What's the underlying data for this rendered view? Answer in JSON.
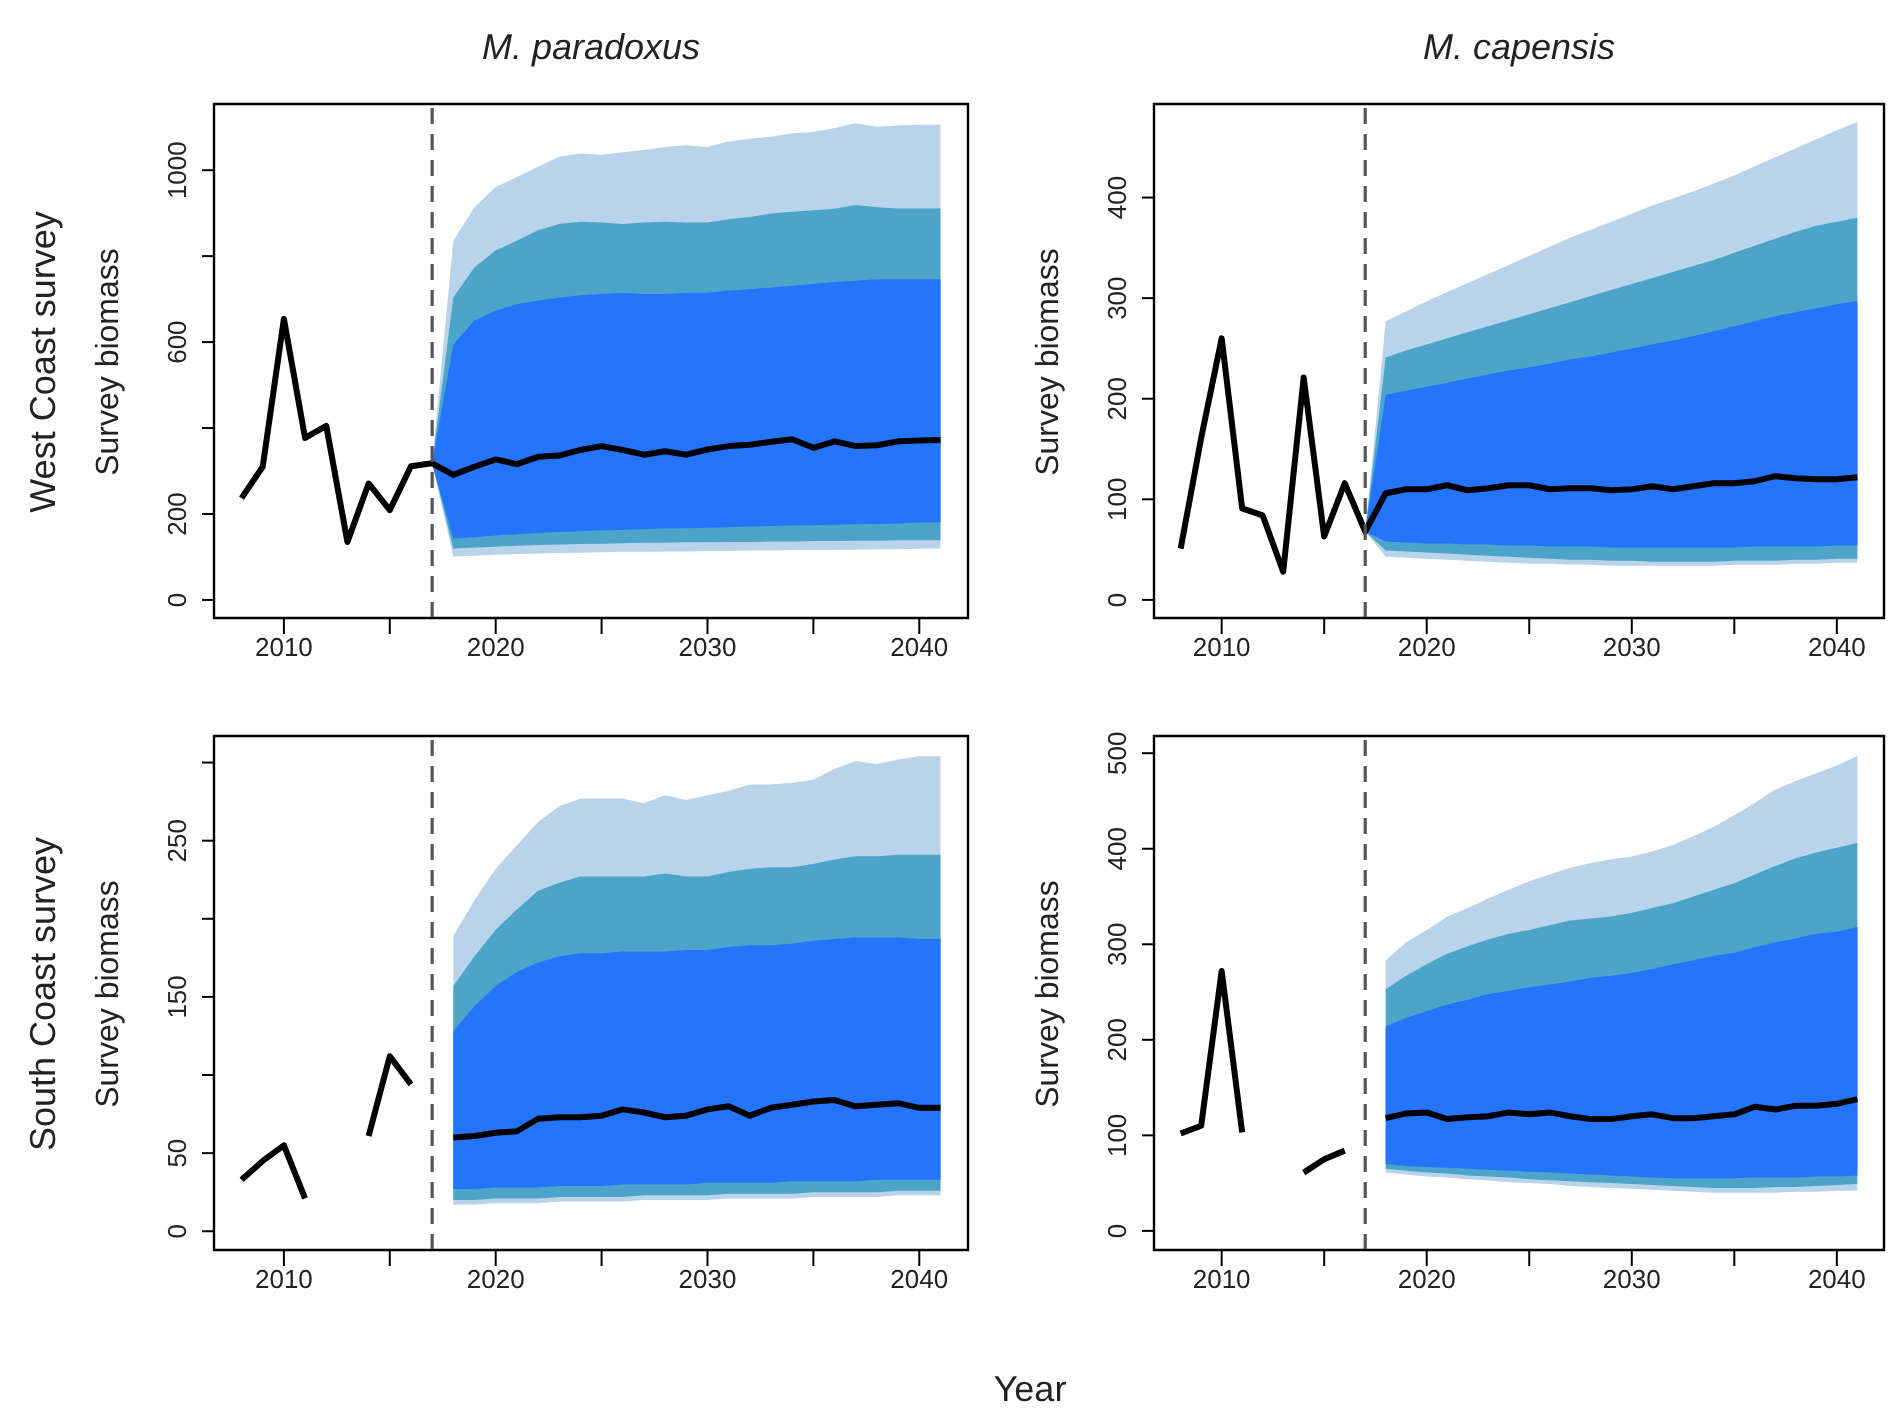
{
  "chart_data": [
    {
      "type": "line",
      "title": "M. paradoxus",
      "ylabel": "Survey biomass",
      "annotations": [
        "West Coast survey"
      ],
      "xlim": [
        2006.7,
        2042.3
      ],
      "xticks": [
        2010,
        {
          "value": 2015,
          "label": null
        },
        2020,
        {
          "value": 2025,
          "label": null
        },
        2030,
        {
          "value": 2035,
          "label": null
        },
        2040
      ],
      "ylim": [
        -42,
        1154
      ],
      "yticks": [
        0,
        200,
        {
          "value": 400,
          "label": null
        },
        600,
        {
          "value": 800,
          "label": null
        },
        1000
      ],
      "ref_lines": [
        {
          "axis": "x",
          "value": 2017,
          "color": "#555555",
          "line_style": "dashed"
        }
      ],
      "series": [
        {
          "type": "area",
          "color": "#b8d3ea",
          "x": [
            2017,
            2018,
            2019,
            2020,
            2021,
            2022,
            2023,
            2024,
            2025,
            2026,
            2027,
            2028,
            2029,
            2030,
            2031,
            2032,
            2033,
            2034,
            2035,
            2036,
            2037,
            2038,
            2039,
            2040,
            2041
          ],
          "values": [
            null,
            null,
            null,
            null,
            null,
            null,
            null,
            null,
            null,
            null,
            null,
            null,
            null,
            null,
            null,
            null,
            null,
            null,
            null,
            null,
            null,
            null,
            null,
            null,
            null
          ],
          "lower": [
            318,
            101,
            103,
            105,
            107,
            108,
            109,
            110,
            111,
            112,
            112,
            113,
            113,
            114,
            114,
            115,
            115,
            116,
            116,
            117,
            117,
            118,
            118,
            119,
            120
          ],
          "upper": [
            318,
            836,
            914,
            961,
            984,
            1008,
            1031,
            1039,
            1036,
            1042,
            1047,
            1054,
            1058,
            1054,
            1067,
            1073,
            1078,
            1086,
            1089,
            1098,
            1109,
            1101,
            1104,
            1106,
            1106
          ]
        },
        {
          "type": "area",
          "color": "#4ca5c8",
          "x": [
            2017,
            2018,
            2019,
            2020,
            2021,
            2022,
            2023,
            2024,
            2025,
            2026,
            2027,
            2028,
            2029,
            2030,
            2031,
            2032,
            2033,
            2034,
            2035,
            2036,
            2037,
            2038,
            2039,
            2040,
            2041
          ],
          "values": [
            null,
            null,
            null,
            null,
            null,
            null,
            null,
            null,
            null,
            null,
            null,
            null,
            null,
            null,
            null,
            null,
            null,
            null,
            null,
            null,
            null,
            null,
            null,
            null,
            null
          ],
          "lower": [
            318,
            120,
            122,
            124,
            126,
            128,
            129,
            130,
            131,
            132,
            133,
            133,
            134,
            134,
            135,
            135,
            136,
            136,
            137,
            137,
            138,
            138,
            139,
            139,
            139
          ],
          "upper": [
            318,
            704,
            774,
            813,
            836,
            860,
            875,
            880,
            878,
            875,
            878,
            880,
            878,
            878,
            886,
            891,
            899,
            903,
            907,
            910,
            919,
            914,
            911,
            911,
            911
          ]
        },
        {
          "type": "area",
          "color": "#2474fc",
          "x": [
            2017,
            2018,
            2019,
            2020,
            2021,
            2022,
            2023,
            2024,
            2025,
            2026,
            2027,
            2028,
            2029,
            2030,
            2031,
            2032,
            2033,
            2034,
            2035,
            2036,
            2037,
            2038,
            2039,
            2040,
            2041
          ],
          "values": [
            null,
            null,
            null,
            null,
            null,
            null,
            null,
            null,
            null,
            null,
            null,
            null,
            null,
            null,
            null,
            null,
            null,
            null,
            null,
            null,
            null,
            null,
            null,
            null,
            null
          ],
          "lower": [
            318,
            143,
            146,
            150,
            153,
            156,
            158,
            160,
            162,
            163,
            165,
            166,
            167,
            168,
            169,
            171,
            172,
            173,
            174,
            175,
            176,
            177,
            178,
            180,
            181
          ],
          "upper": [
            318,
            595,
            650,
            673,
            688,
            696,
            704,
            709,
            712,
            715,
            712,
            712,
            715,
            715,
            720,
            723,
            727,
            731,
            735,
            740,
            743,
            746,
            746,
            746,
            746
          ]
        },
        {
          "type": "line",
          "color": "#000000",
          "x": [
            2008,
            2009,
            2010,
            2011,
            2012,
            2013,
            2014,
            2015,
            2016,
            2017,
            2018,
            2019,
            2020,
            2021,
            2022,
            2023,
            2024,
            2025,
            2026,
            2027,
            2028,
            2029,
            2030,
            2031,
            2032,
            2033,
            2034,
            2035,
            2036,
            2037,
            2038,
            2039,
            2040,
            2041
          ],
          "values": [
            237,
            310,
            654,
            377,
            405,
            135,
            271,
            209,
            311,
            318,
            291,
            310,
            327,
            316,
            333,
            336,
            349,
            358,
            349,
            338,
            346,
            338,
            350,
            358,
            361,
            368,
            374,
            354,
            369,
            358,
            360,
            369,
            371,
            372
          ]
        }
      ]
    },
    {
      "type": "line",
      "title": "M. capensis",
      "ylabel": "Survey biomass",
      "xlim": [
        2006.7,
        2042.3
      ],
      "xticks": [
        2010,
        {
          "value": 2015,
          "label": null
        },
        2020,
        {
          "value": 2025,
          "label": null
        },
        2030,
        {
          "value": 2035,
          "label": null
        },
        2040
      ],
      "ylim": [
        -18,
        493
      ],
      "yticks": [
        0,
        100,
        200,
        300,
        400
      ],
      "ref_lines": [
        {
          "axis": "x",
          "value": 2017,
          "color": "#555555",
          "line_style": "dashed"
        }
      ],
      "series": [
        {
          "type": "area",
          "color": "#b8d3ea",
          "x": [
            2017,
            2018,
            2019,
            2020,
            2021,
            2022,
            2023,
            2024,
            2025,
            2026,
            2027,
            2028,
            2029,
            2030,
            2031,
            2032,
            2033,
            2034,
            2035,
            2036,
            2037,
            2038,
            2039,
            2040,
            2041
          ],
          "values": [
            null,
            null,
            null,
            null,
            null,
            null,
            null,
            null,
            null,
            null,
            null,
            null,
            null,
            null,
            null,
            null,
            null,
            null,
            null,
            null,
            null,
            null,
            null,
            null,
            null
          ],
          "lower": [
            68,
            43,
            42,
            41,
            40,
            39,
            38,
            37,
            36,
            36,
            35,
            35,
            34,
            34,
            34,
            34,
            34,
            34,
            35,
            35,
            35,
            36,
            36,
            37,
            37
          ],
          "upper": [
            68,
            277,
            287,
            297,
            306,
            315,
            324,
            333,
            342,
            351,
            360,
            368,
            376,
            384,
            392,
            399,
            406,
            414,
            422,
            431,
            440,
            449,
            458,
            467,
            475
          ]
        },
        {
          "type": "area",
          "color": "#4ca5c8",
          "x": [
            2017,
            2018,
            2019,
            2020,
            2021,
            2022,
            2023,
            2024,
            2025,
            2026,
            2027,
            2028,
            2029,
            2030,
            2031,
            2032,
            2033,
            2034,
            2035,
            2036,
            2037,
            2038,
            2039,
            2040,
            2041
          ],
          "values": [
            null,
            null,
            null,
            null,
            null,
            null,
            null,
            null,
            null,
            null,
            null,
            null,
            null,
            null,
            null,
            null,
            null,
            null,
            null,
            null,
            null,
            null,
            null,
            null,
            null
          ],
          "lower": [
            68,
            49,
            48,
            47,
            46,
            45,
            44,
            43,
            42,
            41,
            40,
            40,
            39,
            39,
            38,
            38,
            38,
            38,
            39,
            39,
            39,
            40,
            40,
            41,
            41
          ],
          "upper": [
            68,
            241,
            248,
            254,
            260,
            266,
            272,
            278,
            284,
            290,
            296,
            302,
            308,
            314,
            320,
            326,
            332,
            338,
            345,
            352,
            359,
            366,
            372,
            376,
            380
          ]
        },
        {
          "type": "area",
          "color": "#2474fc",
          "x": [
            2017,
            2018,
            2019,
            2020,
            2021,
            2022,
            2023,
            2024,
            2025,
            2026,
            2027,
            2028,
            2029,
            2030,
            2031,
            2032,
            2033,
            2034,
            2035,
            2036,
            2037,
            2038,
            2039,
            2040,
            2041
          ],
          "values": [
            null,
            null,
            null,
            null,
            null,
            null,
            null,
            null,
            null,
            null,
            null,
            null,
            null,
            null,
            null,
            null,
            null,
            null,
            null,
            null,
            null,
            null,
            null,
            null,
            null
          ],
          "lower": [
            68,
            58,
            57,
            56,
            56,
            55,
            55,
            54,
            54,
            53,
            53,
            53,
            52,
            52,
            52,
            52,
            52,
            52,
            52,
            53,
            53,
            53,
            53,
            54,
            54
          ],
          "upper": [
            68,
            204,
            208,
            212,
            216,
            220,
            224,
            228,
            231,
            235,
            239,
            242,
            246,
            250,
            254,
            258,
            262,
            267,
            272,
            277,
            282,
            286,
            290,
            294,
            297
          ]
        },
        {
          "type": "line",
          "color": "#000000",
          "x": [
            2008,
            2009,
            2010,
            2011,
            2012,
            2013,
            2014,
            2015,
            2016,
            2017,
            2018,
            2019,
            2020,
            2021,
            2022,
            2023,
            2024,
            2025,
            2026,
            2027,
            2028,
            2029,
            2030,
            2031,
            2032,
            2033,
            2034,
            2035,
            2036,
            2037,
            2038,
            2039,
            2040,
            2041
          ],
          "values": [
            51,
            161,
            260,
            91,
            84,
            28,
            221,
            63,
            116,
            68,
            106,
            110,
            110,
            114,
            109,
            111,
            114,
            114,
            110,
            111,
            111,
            109,
            110,
            113,
            110,
            113,
            116,
            116,
            118,
            123,
            121,
            120,
            120,
            122
          ]
        }
      ]
    },
    {
      "type": "line",
      "ylabel": "Survey biomass",
      "xlabel": "Year",
      "annotations": [
        "South Coast survey"
      ],
      "xlim": [
        2006.7,
        2042.3
      ],
      "xticks": [
        2010,
        {
          "value": 2015,
          "label": null
        },
        2020,
        {
          "value": 2025,
          "label": null
        },
        2030,
        {
          "value": 2035,
          "label": null
        },
        2040
      ],
      "ylim": [
        -12,
        317
      ],
      "yticks": [
        0,
        50,
        {
          "value": 100,
          "label": null
        },
        150,
        {
          "value": 200,
          "label": null
        },
        250,
        {
          "value": 300,
          "label": null
        }
      ],
      "ref_lines": [
        {
          "axis": "x",
          "value": 2017,
          "color": "#555555",
          "line_style": "dashed"
        }
      ],
      "series": [
        {
          "type": "area",
          "color": "#b8d3ea",
          "x": [
            2018,
            2019,
            2020,
            2021,
            2022,
            2023,
            2024,
            2025,
            2026,
            2027,
            2028,
            2029,
            2030,
            2031,
            2032,
            2033,
            2034,
            2035,
            2036,
            2037,
            2038,
            2039,
            2040,
            2041
          ],
          "values": [
            null,
            null,
            null,
            null,
            null,
            null,
            null,
            null,
            null,
            null,
            null,
            null,
            null,
            null,
            null,
            null,
            null,
            null,
            null,
            null,
            null,
            null,
            null,
            null
          ],
          "lower": [
            17,
            17,
            18,
            18,
            18,
            19,
            19,
            19,
            19,
            20,
            20,
            20,
            20,
            21,
            21,
            21,
            21,
            22,
            22,
            22,
            22,
            23,
            23,
            23
          ],
          "upper": [
            189,
            212,
            232,
            247,
            262,
            272,
            277,
            277,
            277,
            274,
            279,
            276,
            279,
            282,
            286,
            286,
            287,
            289,
            296,
            301,
            299,
            302,
            304,
            304
          ]
        },
        {
          "type": "area",
          "color": "#4ca5c8",
          "x": [
            2018,
            2019,
            2020,
            2021,
            2022,
            2023,
            2024,
            2025,
            2026,
            2027,
            2028,
            2029,
            2030,
            2031,
            2032,
            2033,
            2034,
            2035,
            2036,
            2037,
            2038,
            2039,
            2040,
            2041
          ],
          "values": [
            null,
            null,
            null,
            null,
            null,
            null,
            null,
            null,
            null,
            null,
            null,
            null,
            null,
            null,
            null,
            null,
            null,
            null,
            null,
            null,
            null,
            null,
            null,
            null
          ],
          "lower": [
            20,
            20,
            21,
            21,
            21,
            22,
            22,
            22,
            22,
            23,
            23,
            23,
            23,
            24,
            24,
            24,
            24,
            25,
            25,
            25,
            25,
            26,
            26,
            26
          ],
          "upper": [
            157,
            176,
            193,
            206,
            218,
            223,
            227,
            227,
            227,
            227,
            229,
            227,
            227,
            230,
            232,
            233,
            233,
            235,
            238,
            240,
            240,
            241,
            241,
            241
          ]
        },
        {
          "type": "area",
          "color": "#2474fc",
          "x": [
            2018,
            2019,
            2020,
            2021,
            2022,
            2023,
            2024,
            2025,
            2026,
            2027,
            2028,
            2029,
            2030,
            2031,
            2032,
            2033,
            2034,
            2035,
            2036,
            2037,
            2038,
            2039,
            2040,
            2041
          ],
          "values": [
            null,
            null,
            null,
            null,
            null,
            null,
            null,
            null,
            null,
            null,
            null,
            null,
            null,
            null,
            null,
            null,
            null,
            null,
            null,
            null,
            null,
            null,
            null,
            null
          ],
          "lower": [
            27,
            27,
            28,
            28,
            28,
            29,
            29,
            29,
            30,
            30,
            30,
            30,
            31,
            31,
            31,
            31,
            32,
            32,
            32,
            32,
            33,
            33,
            33,
            33
          ],
          "upper": [
            128,
            144,
            157,
            166,
            172,
            176,
            178,
            178,
            179,
            179,
            179,
            180,
            180,
            182,
            183,
            183,
            184,
            186,
            187,
            188,
            188,
            188,
            187,
            187
          ]
        },
        {
          "type": "line",
          "color": "#000000",
          "x": [
            2008,
            2009,
            2010,
            2011,
            2012,
            2013,
            2014,
            2015,
            2016,
            2017,
            2018,
            2019,
            2020,
            2021,
            2022,
            2023,
            2024,
            2025,
            2026,
            2027,
            2028,
            2029,
            2030,
            2031,
            2032,
            2033,
            2034,
            2035,
            2036,
            2037,
            2038,
            2039,
            2040,
            2041
          ],
          "values": [
            33,
            45,
            55,
            21,
            null,
            null,
            61,
            112,
            94,
            null,
            60,
            61,
            63,
            64,
            72,
            73,
            73,
            74,
            78,
            76,
            73,
            74,
            78,
            80,
            74,
            79,
            81,
            83,
            84,
            80,
            81,
            82,
            79,
            79
          ]
        }
      ]
    },
    {
      "type": "line",
      "ylabel": "Survey biomass",
      "xlim": [
        2006.7,
        2042.3
      ],
      "xticks": [
        2010,
        {
          "value": 2015,
          "label": null
        },
        2020,
        {
          "value": 2025,
          "label": null
        },
        2030,
        {
          "value": 2035,
          "label": null
        },
        2040
      ],
      "ylim": [
        -20,
        518
      ],
      "yticks": [
        0,
        100,
        200,
        300,
        400,
        500
      ],
      "ref_lines": [
        {
          "axis": "x",
          "value": 2017,
          "color": "#555555",
          "line_style": "dashed"
        }
      ],
      "series": [
        {
          "type": "area",
          "color": "#b8d3ea",
          "x": [
            2018,
            2019,
            2020,
            2021,
            2022,
            2023,
            2024,
            2025,
            2026,
            2027,
            2028,
            2029,
            2030,
            2031,
            2032,
            2033,
            2034,
            2035,
            2036,
            2037,
            2038,
            2039,
            2040,
            2041
          ],
          "values": [
            null,
            null,
            null,
            null,
            null,
            null,
            null,
            null,
            null,
            null,
            null,
            null,
            null,
            null,
            null,
            null,
            null,
            null,
            null,
            null,
            null,
            null,
            null,
            null
          ],
          "lower": [
            61,
            59,
            57,
            56,
            54,
            53,
            51,
            50,
            49,
            47,
            46,
            45,
            44,
            43,
            42,
            41,
            40,
            40,
            40,
            40,
            41,
            41,
            42,
            42
          ],
          "upper": [
            283,
            302,
            315,
            329,
            338,
            348,
            357,
            366,
            373,
            380,
            385,
            389,
            392,
            397,
            404,
            413,
            423,
            435,
            448,
            462,
            471,
            479,
            487,
            497
          ]
        },
        {
          "type": "area",
          "color": "#4ca5c8",
          "x": [
            2018,
            2019,
            2020,
            2021,
            2022,
            2023,
            2024,
            2025,
            2026,
            2027,
            2028,
            2029,
            2030,
            2031,
            2032,
            2033,
            2034,
            2035,
            2036,
            2037,
            2038,
            2039,
            2040,
            2041
          ],
          "values": [
            null,
            null,
            null,
            null,
            null,
            null,
            null,
            null,
            null,
            null,
            null,
            null,
            null,
            null,
            null,
            null,
            null,
            null,
            null,
            null,
            null,
            null,
            null,
            null
          ],
          "lower": [
            65,
            63,
            61,
            60,
            58,
            57,
            56,
            54,
            53,
            52,
            51,
            50,
            49,
            48,
            47,
            46,
            45,
            45,
            45,
            46,
            46,
            47,
            48,
            49
          ],
          "upper": [
            253,
            267,
            279,
            290,
            298,
            305,
            311,
            315,
            320,
            325,
            327,
            329,
            333,
            338,
            343,
            350,
            357,
            364,
            373,
            382,
            390,
            396,
            401,
            406
          ]
        },
        {
          "type": "area",
          "color": "#2474fc",
          "x": [
            2018,
            2019,
            2020,
            2021,
            2022,
            2023,
            2024,
            2025,
            2026,
            2027,
            2028,
            2029,
            2030,
            2031,
            2032,
            2033,
            2034,
            2035,
            2036,
            2037,
            2038,
            2039,
            2040,
            2041
          ],
          "values": [
            null,
            null,
            null,
            null,
            null,
            null,
            null,
            null,
            null,
            null,
            null,
            null,
            null,
            null,
            null,
            null,
            null,
            null,
            null,
            null,
            null,
            null,
            null,
            null
          ],
          "lower": [
            70,
            68,
            67,
            66,
            65,
            64,
            63,
            62,
            61,
            60,
            59,
            58,
            57,
            56,
            55,
            55,
            55,
            55,
            56,
            56,
            56,
            57,
            57,
            58
          ],
          "upper": [
            214,
            223,
            230,
            237,
            242,
            248,
            251,
            255,
            258,
            261,
            265,
            267,
            270,
            274,
            279,
            283,
            288,
            291,
            297,
            302,
            306,
            311,
            313,
            318
          ]
        },
        {
          "type": "line",
          "color": "#000000",
          "x": [
            2008,
            2009,
            2010,
            2011,
            2012,
            2013,
            2014,
            2015,
            2016,
            2017,
            2018,
            2019,
            2020,
            2021,
            2022,
            2023,
            2024,
            2025,
            2026,
            2027,
            2028,
            2029,
            2030,
            2031,
            2032,
            2033,
            2034,
            2035,
            2036,
            2037,
            2038,
            2039,
            2040,
            2041
          ],
          "values": [
            102,
            110,
            272,
            103,
            null,
            null,
            61,
            75,
            84,
            null,
            118,
            123,
            124,
            117,
            119,
            120,
            124,
            122,
            124,
            120,
            117,
            117,
            120,
            122,
            118,
            118,
            120,
            122,
            130,
            127,
            131,
            131,
            133,
            138
          ]
        }
      ]
    }
  ]
}
